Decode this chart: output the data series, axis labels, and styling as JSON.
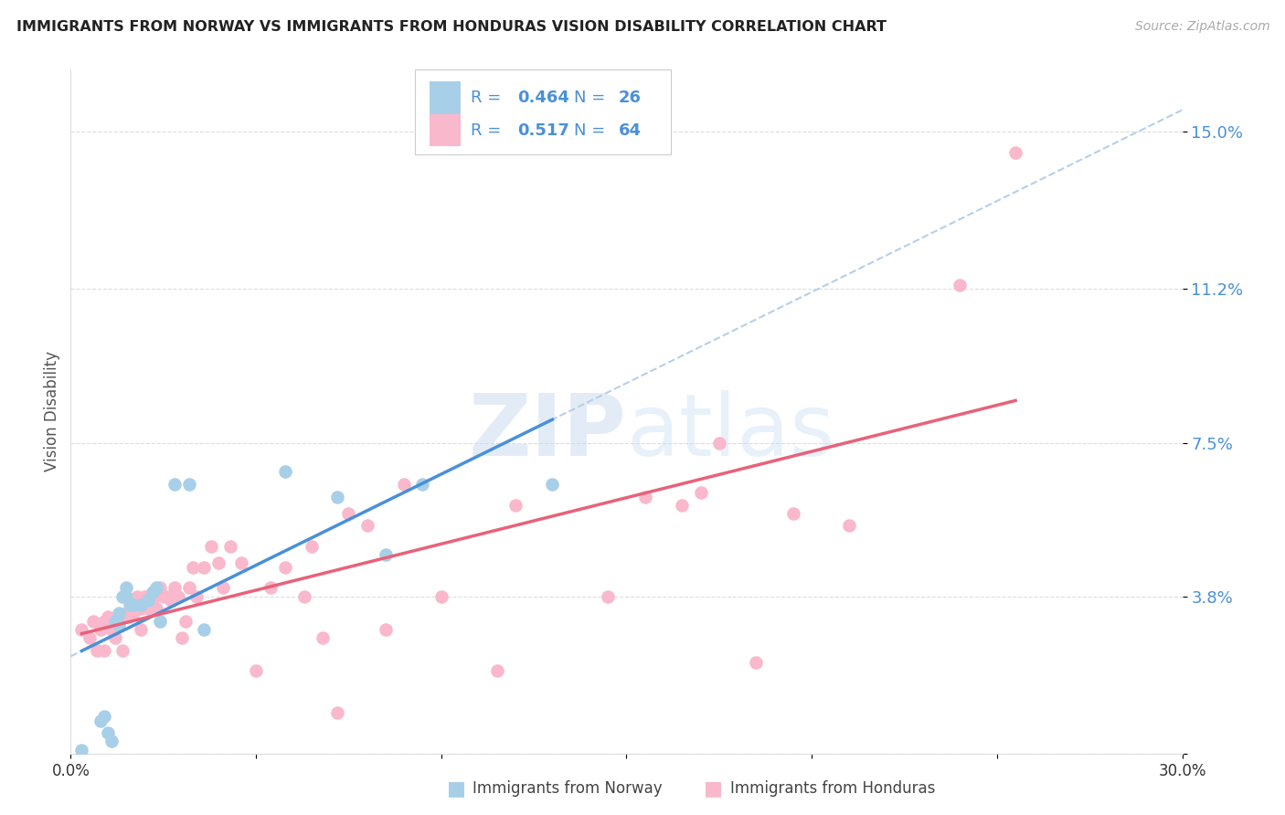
{
  "title": "IMMIGRANTS FROM NORWAY VS IMMIGRANTS FROM HONDURAS VISION DISABILITY CORRELATION CHART",
  "source": "Source: ZipAtlas.com",
  "ylabel": "Vision Disability",
  "xlim": [
    0.0,
    0.3
  ],
  "ylim": [
    0.0,
    0.165
  ],
  "ytick_vals": [
    0.0,
    0.038,
    0.075,
    0.112,
    0.15
  ],
  "ytick_labels": [
    "",
    "3.8%",
    "7.5%",
    "11.2%",
    "15.0%"
  ],
  "xtick_vals": [
    0.0,
    0.05,
    0.1,
    0.15,
    0.2,
    0.25,
    0.3
  ],
  "xtick_labels": [
    "0.0%",
    "",
    "",
    "",
    "",
    "",
    "30.0%"
  ],
  "norway_R": 0.464,
  "norway_N": 26,
  "honduras_R": 0.517,
  "honduras_N": 64,
  "norway_scatter_color": "#a8cfe8",
  "honduras_scatter_color": "#f9b8cc",
  "norway_line_color": "#4a90d9",
  "honduras_line_color": "#e8627a",
  "dashed_line_color": "#b8cfe8",
  "legend_text_color": "#4a90d9",
  "ytick_color": "#4a90d9",
  "background_color": "#ffffff",
  "watermark_zip": "ZIP",
  "watermark_atlas": "atlas",
  "norway_x": [
    0.003,
    0.008,
    0.009,
    0.01,
    0.011,
    0.012,
    0.013,
    0.013,
    0.014,
    0.015,
    0.015,
    0.016,
    0.017,
    0.019,
    0.021,
    0.022,
    0.023,
    0.024,
    0.028,
    0.032,
    0.036,
    0.058,
    0.072,
    0.085,
    0.095,
    0.13
  ],
  "norway_y": [
    0.001,
    0.008,
    0.009,
    0.005,
    0.003,
    0.032,
    0.031,
    0.034,
    0.038,
    0.038,
    0.04,
    0.036,
    0.036,
    0.036,
    0.037,
    0.039,
    0.04,
    0.032,
    0.065,
    0.065,
    0.03,
    0.068,
    0.062,
    0.048,
    0.065,
    0.065
  ],
  "honduras_x": [
    0.003,
    0.005,
    0.006,
    0.007,
    0.008,
    0.009,
    0.009,
    0.01,
    0.011,
    0.012,
    0.013,
    0.014,
    0.015,
    0.015,
    0.016,
    0.017,
    0.018,
    0.019,
    0.019,
    0.02,
    0.021,
    0.022,
    0.023,
    0.024,
    0.025,
    0.026,
    0.027,
    0.028,
    0.029,
    0.03,
    0.031,
    0.032,
    0.033,
    0.034,
    0.036,
    0.038,
    0.04,
    0.041,
    0.043,
    0.046,
    0.05,
    0.054,
    0.058,
    0.063,
    0.065,
    0.068,
    0.072,
    0.075,
    0.08,
    0.085,
    0.09,
    0.1,
    0.115,
    0.12,
    0.145,
    0.155,
    0.165,
    0.17,
    0.175,
    0.185,
    0.195,
    0.21,
    0.24,
    0.255
  ],
  "honduras_y": [
    0.03,
    0.028,
    0.032,
    0.025,
    0.03,
    0.025,
    0.032,
    0.033,
    0.03,
    0.028,
    0.033,
    0.025,
    0.034,
    0.033,
    0.034,
    0.034,
    0.038,
    0.035,
    0.03,
    0.038,
    0.035,
    0.037,
    0.035,
    0.04,
    0.038,
    0.038,
    0.037,
    0.04,
    0.038,
    0.028,
    0.032,
    0.04,
    0.045,
    0.038,
    0.045,
    0.05,
    0.046,
    0.04,
    0.05,
    0.046,
    0.02,
    0.04,
    0.045,
    0.038,
    0.05,
    0.028,
    0.01,
    0.058,
    0.055,
    0.03,
    0.065,
    0.038,
    0.02,
    0.06,
    0.038,
    0.062,
    0.06,
    0.063,
    0.075,
    0.022,
    0.058,
    0.055,
    0.113,
    0.145
  ]
}
